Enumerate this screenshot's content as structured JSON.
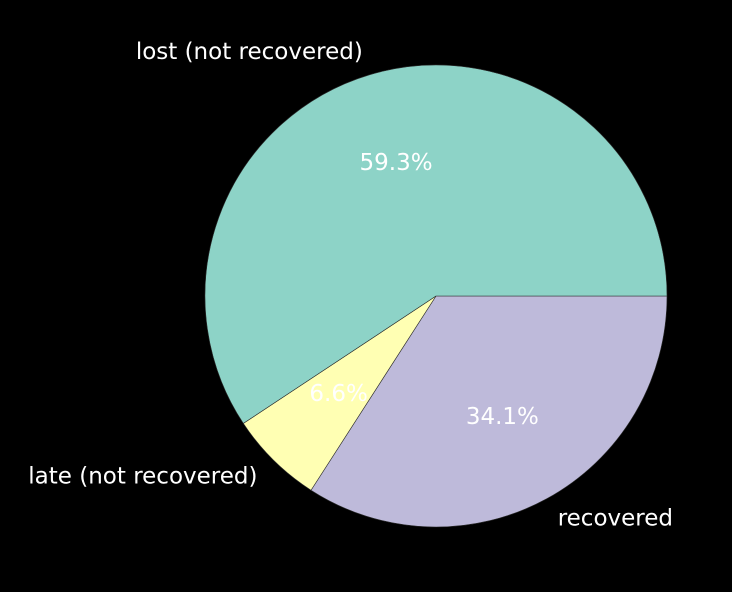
{
  "chart_data": {
    "type": "pie",
    "title": "",
    "categories": [
      "recovered",
      "late (not recovered)",
      "lost (not recovered)"
    ],
    "values": [
      34.1,
      6.6,
      59.3
    ],
    "percent_labels": [
      "34.1%",
      "6.6%",
      "59.3%"
    ],
    "colors": [
      "#bebada",
      "#ffffb3",
      "#8dd3c7"
    ],
    "start_angle_deg": 0,
    "direction": "clockwise",
    "background": "#000000",
    "legend": "none"
  }
}
